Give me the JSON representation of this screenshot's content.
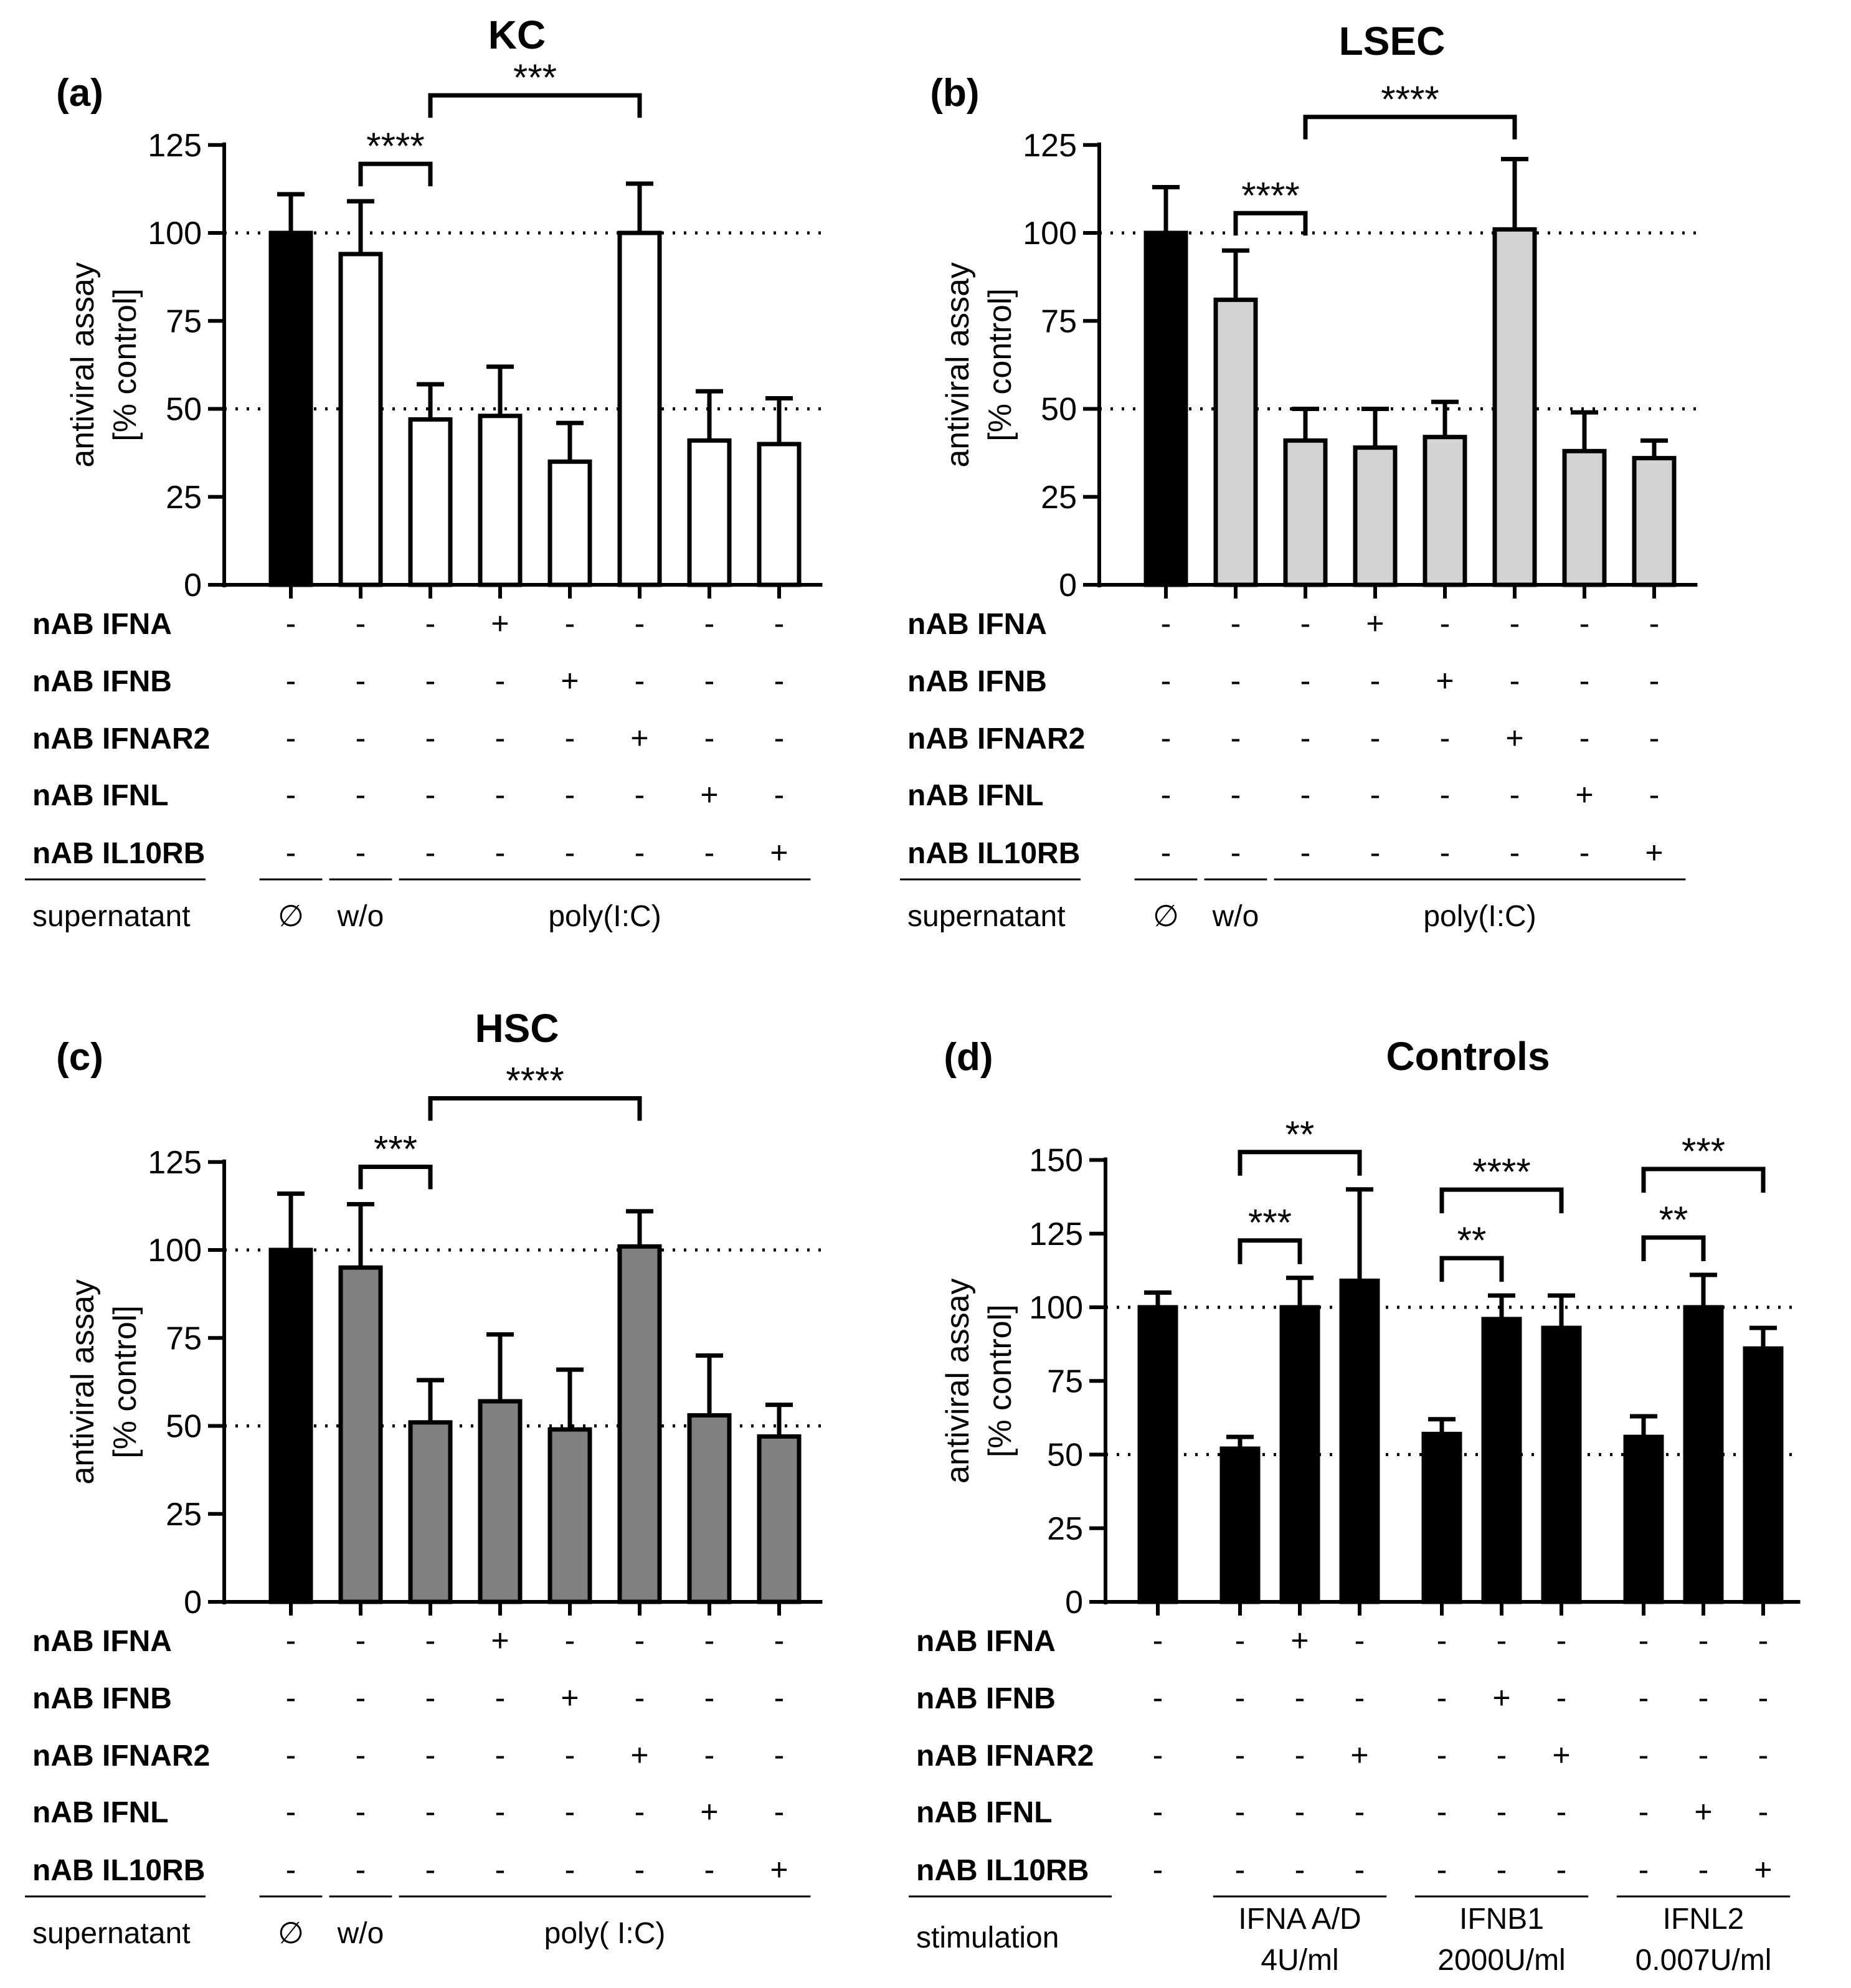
{
  "chart_data": [
    {
      "type": "bar",
      "panel": "(a)",
      "title": "KC",
      "ylabel_line1": "antiviral assay",
      "ylabel_line2": "[% control]",
      "ylim": [
        0,
        125
      ],
      "yticks": [
        "0",
        "25",
        "50",
        "75",
        "100",
        "125"
      ],
      "reference_lines": [
        50,
        100
      ],
      "values": [
        100,
        94,
        47,
        48,
        35,
        100,
        41,
        40
      ],
      "errors": [
        11,
        15,
        10,
        14,
        11,
        14,
        14,
        13
      ],
      "fills": [
        "#000000",
        "#ffffff",
        "#ffffff",
        "#ffffff",
        "#ffffff",
        "#ffffff",
        "#ffffff",
        "#ffffff"
      ],
      "significance": [
        {
          "from": 1,
          "to": 2,
          "label": "****"
        },
        {
          "from": 2,
          "to": 5,
          "label": "***"
        }
      ],
      "rows": [
        {
          "label": "nAB IFNA",
          "values": [
            "-",
            "-",
            "-",
            "+",
            "-",
            "-",
            "-",
            "-"
          ]
        },
        {
          "label": "nAB IFNB",
          "values": [
            "-",
            "-",
            "-",
            "-",
            "+",
            "-",
            "-",
            "-"
          ]
        },
        {
          "label": "nAB IFNAR2",
          "values": [
            "-",
            "-",
            "-",
            "-",
            "-",
            "+",
            "-",
            "-"
          ]
        },
        {
          "label": "nAB IFNL",
          "values": [
            "-",
            "-",
            "-",
            "-",
            "-",
            "-",
            "+",
            "-"
          ]
        },
        {
          "label": "nAB IL10RB",
          "values": [
            "-",
            "-",
            "-",
            "-",
            "-",
            "-",
            "-",
            "+"
          ]
        }
      ],
      "group_label": "supernatant",
      "groups": [
        {
          "label": "∅",
          "from": 0,
          "to": 0
        },
        {
          "label": "w/o",
          "from": 1,
          "to": 1
        },
        {
          "label": "poly(I:C)",
          "from": 2,
          "to": 7
        }
      ]
    },
    {
      "type": "bar",
      "panel": "(b)",
      "title": "LSEC",
      "ylabel_line1": "antiviral assay",
      "ylabel_line2": "[% control]",
      "ylim": [
        0,
        125
      ],
      "yticks": [
        "0",
        "25",
        "50",
        "75",
        "100",
        "125"
      ],
      "reference_lines": [
        50,
        100
      ],
      "values": [
        100,
        81,
        41,
        39,
        42,
        101,
        38,
        36
      ],
      "errors": [
        13,
        14,
        9,
        11,
        10,
        20,
        11,
        5
      ],
      "fills": [
        "#000000",
        "#d3d3d3",
        "#d3d3d3",
        "#d3d3d3",
        "#d3d3d3",
        "#d3d3d3",
        "#d3d3d3",
        "#d3d3d3"
      ],
      "significance": [
        {
          "from": 1,
          "to": 2,
          "label": "****"
        },
        {
          "from": 2,
          "to": 5,
          "label": "****"
        }
      ],
      "rows": [
        {
          "label": "nAB IFNA",
          "values": [
            "-",
            "-",
            "-",
            "+",
            "-",
            "-",
            "-",
            "-"
          ]
        },
        {
          "label": "nAB IFNB",
          "values": [
            "-",
            "-",
            "-",
            "-",
            "+",
            "-",
            "-",
            "-"
          ]
        },
        {
          "label": "nAB IFNAR2",
          "values": [
            "-",
            "-",
            "-",
            "-",
            "-",
            "+",
            "-",
            "-"
          ]
        },
        {
          "label": "nAB IFNL",
          "values": [
            "-",
            "-",
            "-",
            "-",
            "-",
            "-",
            "+",
            "-"
          ]
        },
        {
          "label": "nAB IL10RB",
          "values": [
            "-",
            "-",
            "-",
            "-",
            "-",
            "-",
            "-",
            "+"
          ]
        }
      ],
      "group_label": "supernatant",
      "groups": [
        {
          "label": "∅",
          "from": 0,
          "to": 0
        },
        {
          "label": "w/o",
          "from": 1,
          "to": 1
        },
        {
          "label": "poly(I:C)",
          "from": 2,
          "to": 7
        }
      ]
    },
    {
      "type": "bar",
      "panel": "(c)",
      "title": "HSC",
      "ylabel_line1": "antiviral assay",
      "ylabel_line2": "[% control]",
      "ylim": [
        0,
        125
      ],
      "yticks": [
        "0",
        "25",
        "50",
        "75",
        "100",
        "125"
      ],
      "reference_lines": [
        50,
        100
      ],
      "values": [
        100,
        95,
        51,
        57,
        49,
        101,
        53,
        47
      ],
      "errors": [
        16,
        18,
        12,
        19,
        17,
        10,
        17,
        9
      ],
      "fills": [
        "#000000",
        "#808080",
        "#808080",
        "#808080",
        "#808080",
        "#808080",
        "#808080",
        "#808080"
      ],
      "significance": [
        {
          "from": 1,
          "to": 2,
          "label": "***"
        },
        {
          "from": 2,
          "to": 5,
          "label": "****"
        }
      ],
      "rows": [
        {
          "label": "nAB IFNA",
          "values": [
            "-",
            "-",
            "-",
            "+",
            "-",
            "-",
            "-",
            "-"
          ]
        },
        {
          "label": "nAB IFNB",
          "values": [
            "-",
            "-",
            "-",
            "-",
            "+",
            "-",
            "-",
            "-"
          ]
        },
        {
          "label": "nAB IFNAR2",
          "values": [
            "-",
            "-",
            "-",
            "-",
            "-",
            "+",
            "-",
            "-"
          ]
        },
        {
          "label": "nAB IFNL",
          "values": [
            "-",
            "-",
            "-",
            "-",
            "-",
            "-",
            "+",
            "-"
          ]
        },
        {
          "label": "nAB IL10RB",
          "values": [
            "-",
            "-",
            "-",
            "-",
            "-",
            "-",
            "-",
            "+"
          ]
        }
      ],
      "group_label": "supernatant",
      "groups": [
        {
          "label": "∅",
          "from": 0,
          "to": 0
        },
        {
          "label": "w/o",
          "from": 1,
          "to": 1
        },
        {
          "label": "poly( I:C)",
          "from": 2,
          "to": 7
        }
      ]
    },
    {
      "type": "bar",
      "panel": "(d)",
      "title": "Controls",
      "ylabel_line1": "antiviral assay",
      "ylabel_line2": "[% control]",
      "ylim": [
        0,
        150
      ],
      "yticks": [
        "0",
        "25",
        "50",
        "75",
        "100",
        "125",
        "150"
      ],
      "reference_lines": [
        50,
        100
      ],
      "values": [
        100,
        52,
        100,
        109,
        57,
        96,
        93,
        56,
        100,
        86
      ],
      "errors": [
        5,
        4,
        10,
        31,
        5,
        8,
        11,
        7,
        11,
        7
      ],
      "fills": [
        "#000000",
        "#000000",
        "#000000",
        "#000000",
        "#000000",
        "#000000",
        "#000000",
        "#000000",
        "#000000",
        "#000000"
      ],
      "significance": [
        {
          "from": 1,
          "to": 2,
          "label": "***"
        },
        {
          "from": 1,
          "to": 3,
          "label": "**"
        },
        {
          "from": 4,
          "to": 5,
          "label": "**"
        },
        {
          "from": 4,
          "to": 6,
          "label": "****"
        },
        {
          "from": 7,
          "to": 8,
          "label": "**"
        },
        {
          "from": 7,
          "to": 9,
          "label": "***"
        }
      ],
      "rows": [
        {
          "label": "nAB IFNA",
          "values": [
            "-",
            "-",
            "+",
            "-",
            "-",
            "-",
            "-",
            "-",
            "-",
            "-"
          ]
        },
        {
          "label": "nAB IFNB",
          "values": [
            "-",
            "-",
            "-",
            "-",
            "-",
            "+",
            "-",
            "-",
            "-",
            "-"
          ]
        },
        {
          "label": "nAB IFNAR2",
          "values": [
            "-",
            "-",
            "-",
            "+",
            "-",
            "-",
            "+",
            "-",
            "-",
            "-"
          ]
        },
        {
          "label": "nAB IFNL",
          "values": [
            "-",
            "-",
            "-",
            "-",
            "-",
            "-",
            "-",
            "-",
            "+",
            "-"
          ]
        },
        {
          "label": "nAB IL10RB",
          "values": [
            "-",
            "-",
            "-",
            "-",
            "-",
            "-",
            "-",
            "-",
            "-",
            "+"
          ]
        }
      ],
      "group_label": "stimulation",
      "groups": [
        {
          "label": "IFNA A/D",
          "label2": "4U/ml",
          "from": 1,
          "to": 3
        },
        {
          "label": "IFNB1",
          "label2": "2000U/ml",
          "from": 4,
          "to": 6
        },
        {
          "label": "IFNL2",
          "label2": "0.007U/ml",
          "from": 7,
          "to": 9
        }
      ]
    }
  ]
}
